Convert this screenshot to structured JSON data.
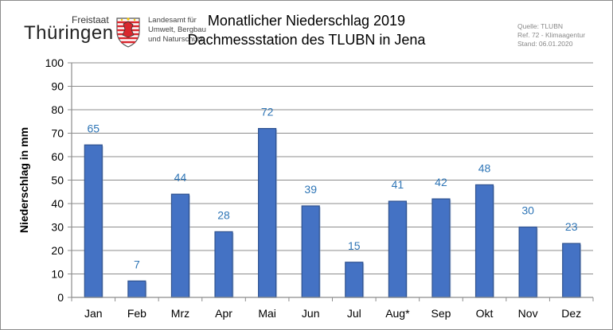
{
  "logo": {
    "freistaat": "Freistaat",
    "thueringen": "Thüringen",
    "agency_lines": [
      "Landesamt für",
      "Umwelt, Bergbau",
      "und Naturschutz"
    ]
  },
  "header": {
    "title": "Monatlicher Niederschlag 2019",
    "subtitle": "Dachmessstation des TLUBN in Jena"
  },
  "meta": {
    "lines": [
      "Quelle: TLUBN",
      "Ref. 72 - Klimaagentur",
      "Stand: 06.01.2020"
    ]
  },
  "chart_data": {
    "type": "bar",
    "title": "Monatlicher Niederschlag 2019",
    "subtitle": "Dachmessstation des TLUBN in Jena",
    "xlabel": "",
    "ylabel": "Niederschlag in mm",
    "categories": [
      "Jan",
      "Feb",
      "Mrz",
      "Apr",
      "Mai",
      "Jun",
      "Jul",
      "Aug*",
      "Sep",
      "Okt",
      "Nov",
      "Dez"
    ],
    "values": [
      65,
      7,
      44,
      28,
      72,
      39,
      15,
      41,
      42,
      48,
      30,
      23
    ],
    "data_labels": [
      "65",
      "7",
      "44",
      "28",
      "72",
      "39",
      "15",
      "41",
      "42",
      "48",
      "30",
      "23"
    ],
    "ylim": [
      0,
      100
    ],
    "yticks": [
      0,
      10,
      20,
      30,
      40,
      50,
      60,
      70,
      80,
      90,
      100
    ],
    "grid": true,
    "legend": "none",
    "colors": {
      "bar_fill": "#4472c4",
      "bar_stroke": "#2f528f",
      "data_label": "#2e75b6",
      "grid": "#8c8c8c"
    }
  }
}
